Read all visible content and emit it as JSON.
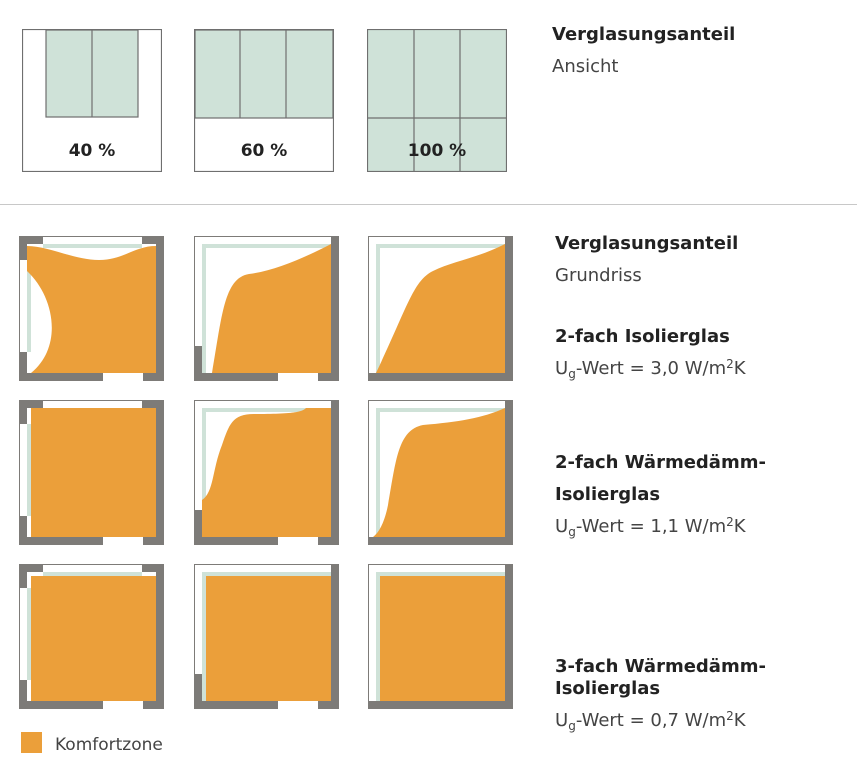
{
  "colors": {
    "glass": "#cfe2d8",
    "frame": "#7d7b78",
    "comfort_zone": "#eb9f3a",
    "pane_outline": "#6f6f6f"
  },
  "elevation": {
    "heading": "Verglasungsanteil",
    "subheading": "Ansicht",
    "panels": [
      {
        "label": "40 %",
        "glazing_share": 0.4
      },
      {
        "label": "60 %",
        "glazing_share": 0.6
      },
      {
        "label": "100 %",
        "glazing_share": 1.0
      }
    ]
  },
  "floorplan": {
    "heading": "Verglasungsanteil",
    "subheading": "Grundriss"
  },
  "glass_types": [
    {
      "name_lines": [
        "2-fach Isolierglas"
      ],
      "u_prefix": "U",
      "u_sub": "g",
      "u_text": "-Wert = 3,0 W/m",
      "u_sup": "2",
      "u_unit": "K"
    },
    {
      "name_lines": [
        "2-fach Wärmedämm-",
        "Isolierglas"
      ],
      "u_prefix": "U",
      "u_sub": "g",
      "u_text": "-Wert = 1,1 W/m",
      "u_sup": "2",
      "u_unit": "K"
    },
    {
      "name_lines": [
        "3-fach Wärmedämm-Isolierglas"
      ],
      "u_prefix": "U",
      "u_sub": "g",
      "u_text": "-Wert = 0,7 W/m",
      "u_sup": "2",
      "u_unit": "K"
    }
  ],
  "legend": {
    "label": "Komfortzone",
    "icon": "orange-square-swatch"
  }
}
